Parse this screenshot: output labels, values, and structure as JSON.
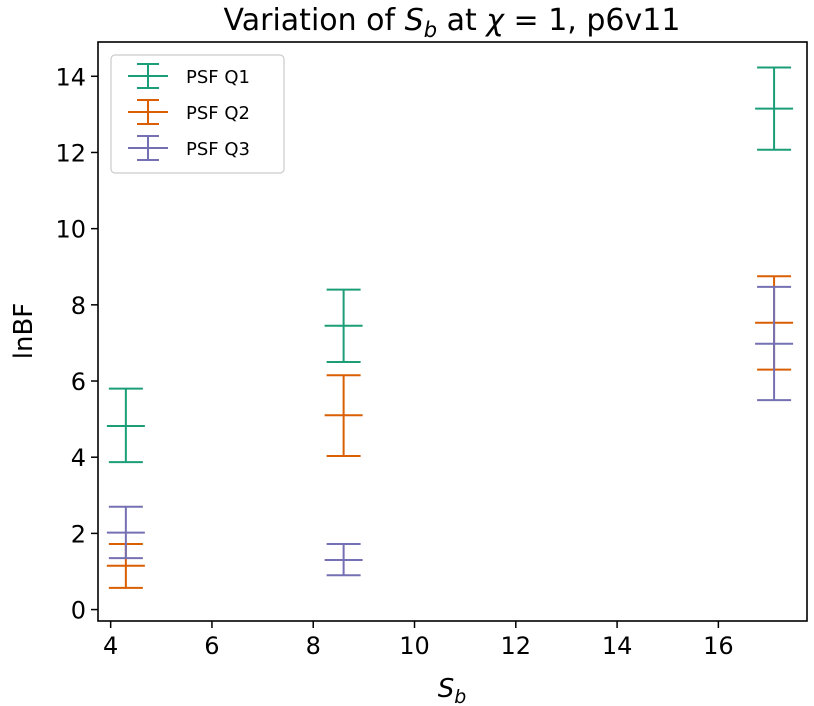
{
  "chart_data": {
    "type": "errorbar",
    "title_prefix": "Variation of ",
    "title_symbol_main": "S",
    "title_symbol_sub": "b",
    "title_mid": " at ",
    "title_chi": "χ",
    "title_suffix": " = 1, p6v11",
    "xlabel_main": "S",
    "xlabel_sub": "b",
    "ylabel": "lnBF",
    "xlim": [
      3.75,
      17.75
    ],
    "ylim": [
      -0.3,
      14.9
    ],
    "xticks": [
      4,
      6,
      8,
      10,
      12,
      14,
      16
    ],
    "yticks": [
      0,
      2,
      4,
      6,
      8,
      10,
      12,
      14
    ],
    "legend_location": "upper-left",
    "series": [
      {
        "name": "PSF Q1",
        "color": "#1b9e77",
        "points": [
          {
            "x": 4.3,
            "y": 4.82,
            "yerr_low": 3.87,
            "yerr_high": 5.8
          },
          {
            "x": 8.6,
            "y": 7.45,
            "yerr_low": 6.5,
            "yerr_high": 8.4
          },
          {
            "x": 17.1,
            "y": 13.15,
            "yerr_low": 12.07,
            "yerr_high": 14.23
          }
        ]
      },
      {
        "name": "PSF Q2",
        "color": "#d95f02",
        "points": [
          {
            "x": 4.3,
            "y": 1.15,
            "yerr_low": 0.57,
            "yerr_high": 1.72
          },
          {
            "x": 8.6,
            "y": 5.1,
            "yerr_low": 4.03,
            "yerr_high": 6.15
          },
          {
            "x": 17.1,
            "y": 7.53,
            "yerr_low": 6.3,
            "yerr_high": 8.75
          }
        ]
      },
      {
        "name": "PSF Q3",
        "color": "#7570b3",
        "points": [
          {
            "x": 4.3,
            "y": 2.02,
            "yerr_low": 1.35,
            "yerr_high": 2.7
          },
          {
            "x": 8.6,
            "y": 1.3,
            "yerr_low": 0.9,
            "yerr_high": 1.72
          },
          {
            "x": 17.1,
            "y": 6.98,
            "yerr_low": 5.5,
            "yerr_high": 8.47
          }
        ]
      }
    ]
  }
}
